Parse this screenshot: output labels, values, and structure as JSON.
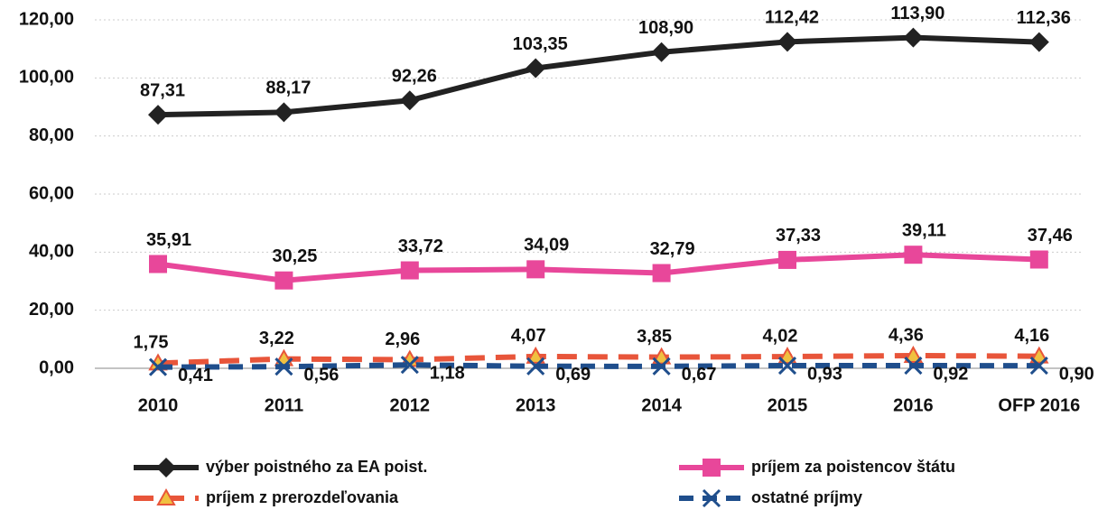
{
  "chart_data": {
    "type": "line",
    "categories": [
      "2010",
      "2011",
      "2012",
      "2013",
      "2014",
      "2015",
      "2016",
      "OFP 2016"
    ],
    "ylim": [
      0,
      120
    ],
    "yticks": [
      {
        "value": 0,
        "label": "0,00"
      },
      {
        "value": 20,
        "label": "20,00"
      },
      {
        "value": 40,
        "label": "40,00"
      },
      {
        "value": 60,
        "label": "60,00"
      },
      {
        "value": 80,
        "label": "80,00"
      },
      {
        "value": 100,
        "label": "100,00"
      },
      {
        "value": 120,
        "label": "120,00"
      }
    ],
    "grid": true,
    "series": [
      {
        "name": "výber poistného za  EA poist.",
        "color": "#222222",
        "marker": "diamond",
        "values": [
          87.31,
          88.17,
          92.26,
          103.35,
          108.9,
          112.42,
          113.9,
          112.36
        ],
        "value_labels": [
          "87,31",
          "88,17",
          "92,26",
          "103,35",
          "108,90",
          "112,42",
          "113,90",
          "112,36"
        ]
      },
      {
        "name": "príjem za poistencov štátu",
        "color": "#e8479a",
        "marker": "square",
        "values": [
          35.91,
          30.25,
          33.72,
          34.09,
          32.79,
          37.33,
          39.11,
          37.46
        ],
        "value_labels": [
          "35,91",
          "30,25",
          "33,72",
          "34,09",
          "32,79",
          "37,33",
          "39,11",
          "37,46"
        ]
      },
      {
        "name": "príjem z prerozdeľovania",
        "color": "#e8553a",
        "marker": "triangle",
        "values": [
          1.75,
          3.22,
          2.96,
          4.07,
          3.85,
          4.02,
          4.36,
          4.16
        ],
        "value_labels": [
          "1,75",
          "3,22",
          "2,96",
          "4,07",
          "3,85",
          "4,02",
          "4,36",
          "4,16"
        ]
      },
      {
        "name": "ostatné príjmy",
        "color": "#1f4e8c",
        "marker": "x",
        "values": [
          0.41,
          0.56,
          1.18,
          0.69,
          0.67,
          0.93,
          0.92,
          0.9
        ],
        "value_labels": [
          "0,41",
          "0,56",
          "1,18",
          "0,69",
          "0,67",
          "0,93",
          "0,92",
          "0,90"
        ]
      }
    ]
  }
}
